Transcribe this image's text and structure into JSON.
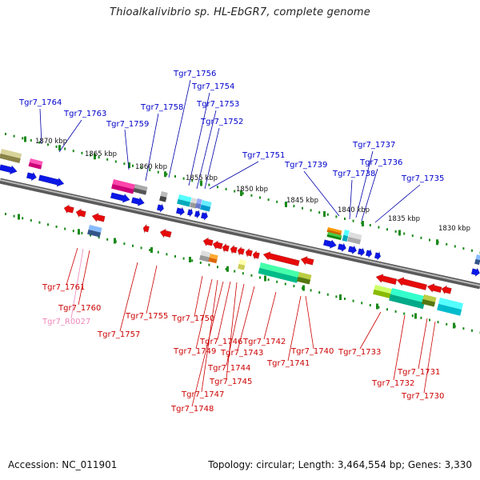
{
  "title": "Thioalkalivibrio sp. HL-EbGR7, complete genome",
  "accession_label": "Accession:",
  "accession": "NC_011901",
  "topology_label": "Topology:",
  "topology": "circular",
  "length_label": "Length:",
  "length": "3,464,554 bp",
  "genes_label": "Genes:",
  "genes": "3,330",
  "ruler_labels": [
    "1870 kbp",
    "1865 kbp",
    "1860 kbp",
    "1855 kbp",
    "1850 kbp",
    "1845 kbp",
    "1840 kbp",
    "1835 kbp",
    "1830 kbp"
  ],
  "forward_genes": [
    "Tgr7_1764",
    "Tgr7_1763",
    "Tgr7_1759",
    "Tgr7_1758",
    "Tgr7_1756",
    "Tgr7_1754",
    "Tgr7_1753",
    "Tgr7_1752",
    "Tgr7_1751",
    "Tgr7_1739",
    "Tgr7_1738",
    "Tgr7_1737",
    "Tgr7_1736",
    "Tgr7_1735"
  ],
  "reverse_genes": [
    "Tgr7_1761",
    "Tgr7_1760",
    "Tgr7_R0027",
    "Tgr7_1757",
    "Tgr7_1755",
    "Tgr7_1750",
    "Tgr7_1749",
    "Tgr7_1747",
    "Tgr7_1748",
    "Tgr7_1746",
    "Tgr7_1745",
    "Tgr7_1744",
    "Tgr7_1743",
    "Tgr7_1742",
    "Tgr7_1741",
    "Tgr7_1740",
    "Tgr7_1733",
    "Tgr7_1732",
    "Tgr7_1731",
    "Tgr7_1730"
  ],
  "colors": {
    "forward_label": "#0000cc",
    "reverse_label": "#cc0000",
    "rna_label": "#ee88bb",
    "forward_arrow": "#0a17e6",
    "reverse_arrow": "#e60a0a",
    "tick": "#1a8a1a",
    "backbone": "#777777"
  }
}
